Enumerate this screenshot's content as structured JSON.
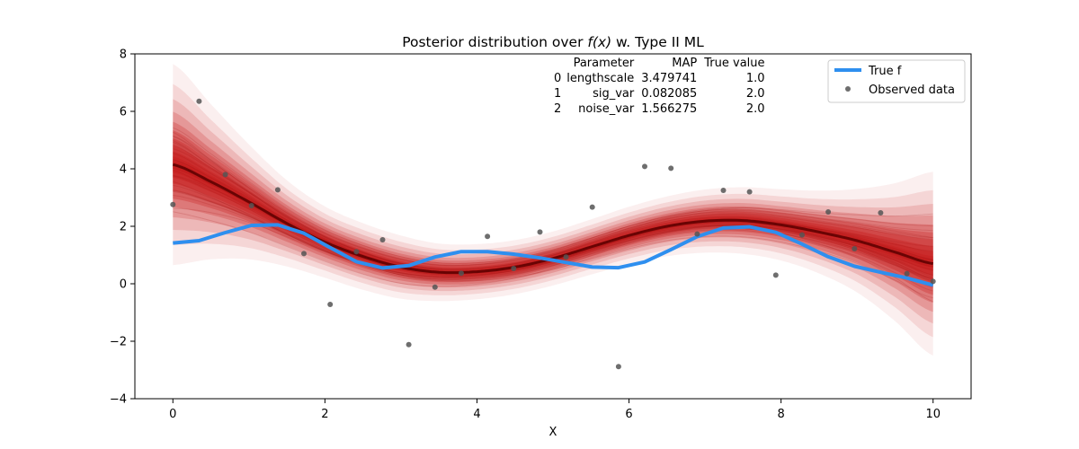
{
  "chart_data": {
    "type": "line",
    "title_prefix": "Posterior distribution over ",
    "title_fx": "f(x)",
    "title_suffix": " w. Type II ML",
    "xlabel": "X",
    "ylabel": "",
    "xlim": [
      -0.5,
      10.5
    ],
    "ylim": [
      -4,
      8
    ],
    "xticks": [
      0,
      2,
      4,
      6,
      8,
      10
    ],
    "yticks": [
      -4,
      -2,
      0,
      2,
      4,
      6,
      8
    ],
    "grid": false,
    "legend_position": "top-right",
    "series": [
      {
        "name": "True f",
        "kind": "line",
        "color": "#2e8fef",
        "x": [
          0,
          0.345,
          0.69,
          1.034,
          1.379,
          1.724,
          2.069,
          2.414,
          2.759,
          3.103,
          3.448,
          3.793,
          4.138,
          4.483,
          4.828,
          5.172,
          5.517,
          5.862,
          6.207,
          6.552,
          6.897,
          7.241,
          7.586,
          7.931,
          8.276,
          8.621,
          8.966,
          9.31,
          9.655,
          10
        ],
        "y": [
          1.42,
          1.5,
          1.78,
          2.03,
          2.05,
          1.76,
          1.26,
          0.77,
          0.55,
          0.63,
          0.93,
          1.12,
          1.12,
          1.03,
          0.9,
          0.74,
          0.58,
          0.56,
          0.76,
          1.19,
          1.64,
          1.94,
          1.98,
          1.79,
          1.38,
          0.94,
          0.61,
          0.4,
          0.2,
          -0.05
        ]
      },
      {
        "name": "Observed data",
        "kind": "scatter",
        "color": "#555555",
        "x": [
          0,
          0.345,
          0.69,
          1.034,
          1.379,
          1.724,
          2.069,
          2.414,
          2.759,
          3.103,
          3.448,
          3.793,
          4.138,
          4.483,
          4.828,
          5.172,
          5.517,
          5.862,
          6.207,
          6.552,
          6.897,
          7.241,
          7.586,
          7.931,
          8.276,
          8.621,
          8.966,
          9.31,
          9.655,
          10
        ],
        "y": [
          2.76,
          6.35,
          3.8,
          2.72,
          3.27,
          1.05,
          -0.72,
          1.12,
          1.53,
          -2.12,
          -0.12,
          0.37,
          1.65,
          0.53,
          1.8,
          0.93,
          2.67,
          -2.88,
          4.08,
          4.02,
          1.73,
          3.25,
          3.2,
          0.3,
          1.7,
          2.5,
          1.22,
          2.47,
          0.35,
          0.08
        ]
      }
    ],
    "posterior_band": {
      "color": "#c81d1d",
      "x": [
        0,
        0.5,
        1,
        1.5,
        2,
        2.5,
        3,
        3.5,
        4,
        4.5,
        5,
        5.5,
        6,
        6.5,
        7,
        7.5,
        8,
        8.5,
        9,
        9.5,
        10
      ],
      "mean": [
        4.15,
        3.55,
        2.85,
        2.1,
        1.45,
        0.95,
        0.58,
        0.4,
        0.42,
        0.58,
        0.88,
        1.28,
        1.68,
        2.0,
        2.18,
        2.2,
        2.05,
        1.8,
        1.5,
        1.1,
        0.7
      ],
      "spread": [
        1.75,
        1.35,
        1.0,
        0.75,
        0.62,
        0.58,
        0.55,
        0.5,
        0.48,
        0.47,
        0.47,
        0.48,
        0.5,
        0.52,
        0.55,
        0.58,
        0.62,
        0.72,
        0.9,
        1.2,
        1.6
      ]
    },
    "legend": [
      "True f",
      "Observed data"
    ]
  },
  "param_table": {
    "headers": [
      "",
      "Parameter",
      "MAP",
      "True value"
    ],
    "rows": [
      [
        "0",
        "lengthscale",
        "3.479741",
        "1.0"
      ],
      [
        "1",
        "sig_var",
        "0.082085",
        "2.0"
      ],
      [
        "2",
        "noise_var",
        "1.566275",
        "2.0"
      ]
    ]
  }
}
